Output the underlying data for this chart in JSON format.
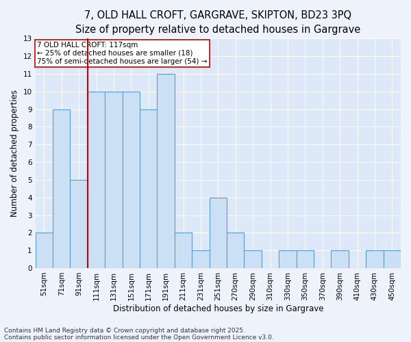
{
  "title_line1": "7, OLD HALL CROFT, GARGRAVE, SKIPTON, BD23 3PQ",
  "title_line2": "Size of property relative to detached houses in Gargrave",
  "categories": [
    "51sqm",
    "71sqm",
    "91sqm",
    "111sqm",
    "131sqm",
    "151sqm",
    "171sqm",
    "191sqm",
    "211sqm",
    "231sqm",
    "251sqm",
    "270sqm",
    "290sqm",
    "310sqm",
    "330sqm",
    "350sqm",
    "370sqm",
    "390sqm",
    "410sqm",
    "430sqm",
    "450sqm"
  ],
  "values": [
    2,
    9,
    5,
    10,
    10,
    10,
    9,
    11,
    2,
    1,
    4,
    2,
    1,
    0,
    1,
    1,
    0,
    1,
    0,
    1,
    1
  ],
  "bar_color": "#cce0f5",
  "bar_edge_color": "#5b9bd5",
  "vline_color": "#cc0000",
  "vline_index": 3,
  "ylabel": "Number of detached properties",
  "xlabel": "Distribution of detached houses by size in Gargrave",
  "annotation_line1": "7 OLD HALL CROFT: 117sqm",
  "annotation_line2": "← 25% of detached houses are smaller (18)",
  "annotation_line3": "75% of semi-detached houses are larger (54) →",
  "annotation_box_color": "#ffffff",
  "annotation_box_edge": "#cc0000",
  "footnote_line1": "Contains HM Land Registry data © Crown copyright and database right 2025.",
  "footnote_line2": "Contains public sector information licensed under the Open Government Licence v3.0.",
  "ylim": [
    0,
    13
  ],
  "yticks": [
    0,
    1,
    2,
    3,
    4,
    5,
    6,
    7,
    8,
    9,
    10,
    11,
    12,
    13
  ],
  "plot_bg_color": "#dde8f8",
  "fig_bg_color": "#eef3fb",
  "grid_color": "#ffffff",
  "title_fontsize": 10.5,
  "subtitle_fontsize": 9.5,
  "axis_label_fontsize": 8.5,
  "tick_fontsize": 7.5,
  "annotation_fontsize": 7.5,
  "footnote_fontsize": 6.5
}
